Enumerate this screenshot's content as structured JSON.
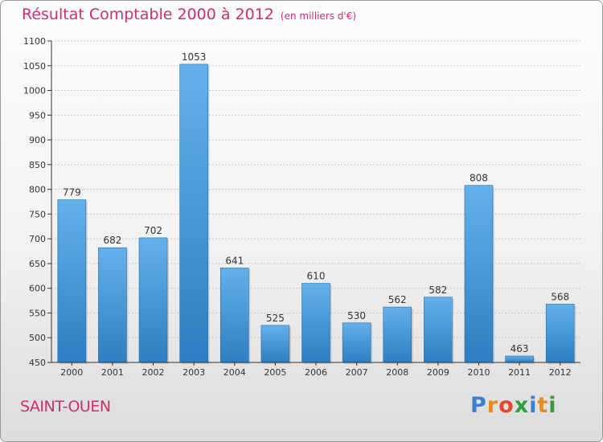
{
  "title": "Résultat Comptable 2000 à 2012",
  "subtitle": "(en milliers d'€)",
  "commune": "SAINT-OUEN",
  "logo": {
    "letters": [
      "P",
      "r",
      "o",
      "x",
      "i",
      "t",
      "i"
    ],
    "colors": [
      "#3a7fd0",
      "#e98a1f",
      "#e04a2c",
      "#2e9e3e",
      "#3a7fd0",
      "#e98a1f",
      "#3a9a3a"
    ]
  },
  "colors": {
    "bar_light": "#64b0ea",
    "bar_dark": "#2d7fc1",
    "title": "#cc2e6e",
    "grid": "#c8c8c8",
    "axis": "#333333"
  },
  "chart_data": {
    "type": "bar",
    "title": "Résultat Comptable 2000 à 2012",
    "subtitle": "(en milliers d'€)",
    "xlabel": "",
    "ylabel": "",
    "categories": [
      "2000",
      "2001",
      "2002",
      "2003",
      "2004",
      "2005",
      "2006",
      "2007",
      "2008",
      "2009",
      "2010",
      "2011",
      "2012"
    ],
    "values": [
      779,
      682,
      702,
      1053,
      641,
      525,
      610,
      530,
      562,
      582,
      808,
      463,
      568
    ],
    "ylim": [
      450,
      1100
    ],
    "yticks": [
      450,
      500,
      550,
      600,
      650,
      700,
      750,
      800,
      850,
      900,
      950,
      1000,
      1050,
      1100
    ],
    "grid": true
  }
}
